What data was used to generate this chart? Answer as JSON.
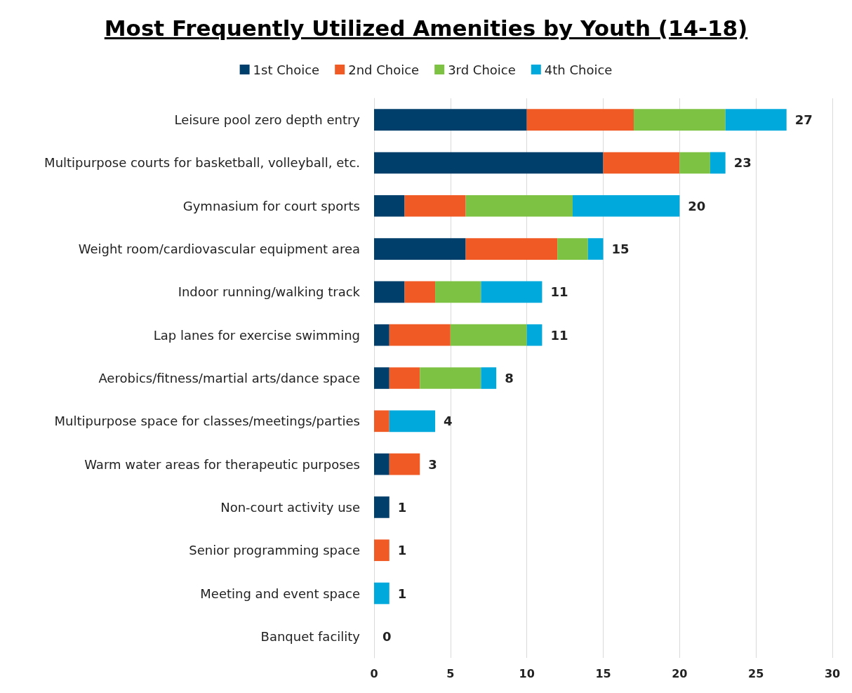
{
  "chart_data": {
    "type": "bar",
    "orientation": "horizontal",
    "stacked": true,
    "title": "Most Frequently Utilized Amenities by Youth (14-18)",
    "categories": [
      "Leisure pool zero depth entry",
      "Multipurpose courts for basketball, volleyball, etc.",
      "Gymnasium for court sports",
      "Weight room/cardiovascular equipment area",
      "Indoor running/walking track",
      "Lap lanes for exercise swimming",
      "Aerobics/fitness/martial arts/dance space",
      "Multipurpose space for classes/meetings/parties",
      "Warm water areas for therapeutic purposes",
      "Non-court activity use",
      "Senior programming space",
      "Meeting and event space",
      "Banquet facility"
    ],
    "series": [
      {
        "name": "1st Choice",
        "color": "#003f6b",
        "values": [
          10,
          15,
          2,
          6,
          2,
          1,
          1,
          0,
          1,
          1,
          0,
          0,
          0
        ]
      },
      {
        "name": "2nd Choice",
        "color": "#f05a24",
        "values": [
          7,
          5,
          4,
          6,
          2,
          4,
          2,
          1,
          2,
          0,
          1,
          0,
          0
        ]
      },
      {
        "name": "3rd Choice",
        "color": "#7dc242",
        "values": [
          6,
          2,
          7,
          2,
          3,
          5,
          4,
          0,
          0,
          0,
          0,
          0,
          0
        ]
      },
      {
        "name": "4th Choice",
        "color": "#00a9dc",
        "values": [
          4,
          1,
          7,
          1,
          4,
          1,
          1,
          3,
          0,
          0,
          0,
          1,
          0
        ]
      }
    ],
    "totals": [
      "27",
      "23",
      "20",
      "15",
      "11",
      "11",
      "8",
      "4",
      "3",
      "1",
      "1",
      "1",
      "0"
    ],
    "xlim": [
      0,
      30
    ],
    "xticks": [
      0,
      5,
      10,
      15,
      20,
      25,
      30
    ],
    "grid": "x",
    "legend": "top"
  }
}
